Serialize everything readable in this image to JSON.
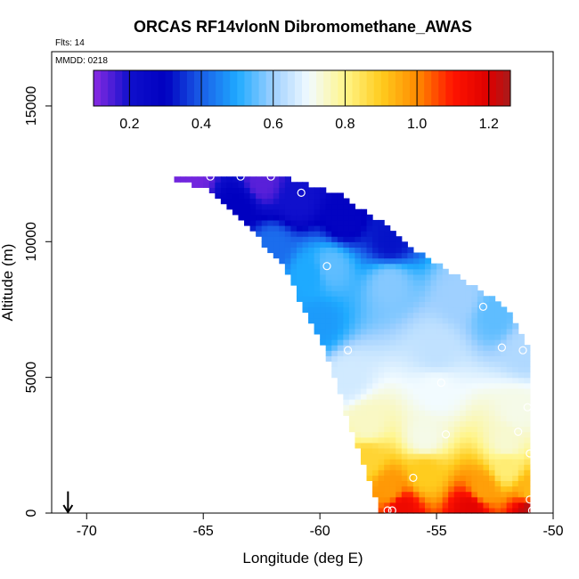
{
  "chart_data": {
    "type": "heatmap",
    "title": "ORCAS RF14vlonN Dibromomethane_AWAS",
    "subtitle_flights": "Flts: 14",
    "subtitle_date": "MMDD: 0218",
    "xlabel": "Longitude (deg E)",
    "ylabel": "Altitude (m)",
    "xlim": [
      -71.5,
      -50
    ],
    "ylim": [
      0,
      17000
    ],
    "x_ticks": [
      -70,
      -65,
      -60,
      -55,
      -50
    ],
    "x_tick_labels": [
      "-70",
      "-65",
      "-60",
      "-55",
      "-50"
    ],
    "y_ticks": [
      0,
      5000,
      10000,
      15000
    ],
    "y_tick_labels": [
      "0",
      "5000",
      "10000",
      "15000"
    ],
    "colorbar": {
      "range": [
        0.1,
        1.26
      ],
      "ticks": [
        0.2,
        0.4,
        0.6,
        0.8,
        1.0,
        1.2
      ],
      "tick_labels": [
        "0.2",
        "0.4",
        "0.6",
        "0.8",
        "1.0",
        "1.2"
      ],
      "stops": [
        {
          "v": 0.1,
          "color": "#8a2be2"
        },
        {
          "v": 0.2,
          "color": "#1010cc"
        },
        {
          "v": 0.3,
          "color": "#0000c0"
        },
        {
          "v": 0.4,
          "color": "#1a5ee8"
        },
        {
          "v": 0.5,
          "color": "#1eaaff"
        },
        {
          "v": 0.6,
          "color": "#9fd0ff"
        },
        {
          "v": 0.7,
          "color": "#f2fbff"
        },
        {
          "v": 0.8,
          "color": "#fff58a"
        },
        {
          "v": 0.9,
          "color": "#ffcc1e"
        },
        {
          "v": 1.0,
          "color": "#ff8c00"
        },
        {
          "v": 1.1,
          "color": "#ff1400"
        },
        {
          "v": 1.2,
          "color": "#dd0000"
        },
        {
          "v": 1.26,
          "color": "#a81b1b"
        }
      ]
    },
    "field_domain": {
      "min_alt": 0,
      "max_alt": 12400,
      "left_edge": [
        [
          0,
          -57.4
        ],
        [
          3000,
          -58.6
        ],
        [
          6000,
          -59.8
        ],
        [
          9000,
          -61.5
        ],
        [
          10500,
          -63.0
        ],
        [
          11800,
          -64.5
        ],
        [
          12400,
          -66.5
        ]
      ],
      "right_edge": [
        [
          0,
          -50.9
        ],
        [
          5800,
          -50.9
        ],
        [
          7600,
          -52.0
        ],
        [
          9500,
          -55.6
        ],
        [
          10800,
          -57.5
        ],
        [
          11800,
          -59.3
        ],
        [
          12400,
          -61.5
        ]
      ]
    },
    "field_anchors": [
      {
        "lon": -65.5,
        "alt": 12400,
        "value": 0.12
      },
      {
        "lon": -62.5,
        "alt": 12200,
        "value": 0.14
      },
      {
        "lon": -61.0,
        "alt": 11600,
        "value": 0.2
      },
      {
        "lon": -59.0,
        "alt": 10800,
        "value": 0.28
      },
      {
        "lon": -57.0,
        "alt": 10000,
        "value": 0.32
      },
      {
        "lon": -63.5,
        "alt": 11300,
        "value": 0.3
      },
      {
        "lon": -62.0,
        "alt": 9800,
        "value": 0.42
      },
      {
        "lon": -60.5,
        "alt": 8800,
        "value": 0.5
      },
      {
        "lon": -60.0,
        "alt": 7000,
        "value": 0.48
      },
      {
        "lon": -59.5,
        "alt": 9100,
        "value": 0.55
      },
      {
        "lon": -57.0,
        "alt": 8500,
        "value": 0.58
      },
      {
        "lon": -54.0,
        "alt": 8000,
        "value": 0.6
      },
      {
        "lon": -52.5,
        "alt": 7300,
        "value": 0.55
      },
      {
        "lon": -51.2,
        "alt": 6000,
        "value": 0.62
      },
      {
        "lon": -55.0,
        "alt": 6000,
        "value": 0.64
      },
      {
        "lon": -58.8,
        "alt": 5000,
        "value": 0.66
      },
      {
        "lon": -55.0,
        "alt": 4500,
        "value": 0.7
      },
      {
        "lon": -51.5,
        "alt": 3800,
        "value": 0.72
      },
      {
        "lon": -58.0,
        "alt": 3300,
        "value": 0.75
      },
      {
        "lon": -55.5,
        "alt": 2800,
        "value": 0.72
      },
      {
        "lon": -52.0,
        "alt": 2600,
        "value": 0.74
      },
      {
        "lon": -58.0,
        "alt": 2000,
        "value": 0.88
      },
      {
        "lon": -55.5,
        "alt": 1500,
        "value": 0.9
      },
      {
        "lon": -52.0,
        "alt": 1700,
        "value": 0.82
      },
      {
        "lon": -57.0,
        "alt": 900,
        "value": 0.98
      },
      {
        "lon": -53.0,
        "alt": 900,
        "value": 0.97
      },
      {
        "lon": -51.0,
        "alt": 800,
        "value": 0.93
      },
      {
        "lon": -56.5,
        "alt": 150,
        "value": 1.15
      },
      {
        "lon": -53.5,
        "alt": 150,
        "value": 1.18
      },
      {
        "lon": -51.0,
        "alt": 150,
        "value": 1.24
      }
    ],
    "sample_points": [
      {
        "lon": -64.7,
        "alt": 12400
      },
      {
        "lon": -63.4,
        "alt": 12400
      },
      {
        "lon": -62.1,
        "alt": 12400
      },
      {
        "lon": -60.8,
        "alt": 11800
      },
      {
        "lon": -59.7,
        "alt": 9100
      },
      {
        "lon": -53.0,
        "alt": 7600
      },
      {
        "lon": -52.2,
        "alt": 6100
      },
      {
        "lon": -58.8,
        "alt": 6000
      },
      {
        "lon": -51.3,
        "alt": 6000
      },
      {
        "lon": -54.8,
        "alt": 4800
      },
      {
        "lon": -51.1,
        "alt": 3900
      },
      {
        "lon": -51.5,
        "alt": 3000
      },
      {
        "lon": -54.6,
        "alt": 2900
      },
      {
        "lon": -51.0,
        "alt": 2200
      },
      {
        "lon": -56.0,
        "alt": 1300
      },
      {
        "lon": -51.0,
        "alt": 500
      },
      {
        "lon": -56.9,
        "alt": 100
      },
      {
        "lon": -57.1,
        "alt": 100
      },
      {
        "lon": -50.9,
        "alt": 100
      }
    ],
    "wind_arrow": {
      "lon": -70.8,
      "alt": 800
    }
  }
}
